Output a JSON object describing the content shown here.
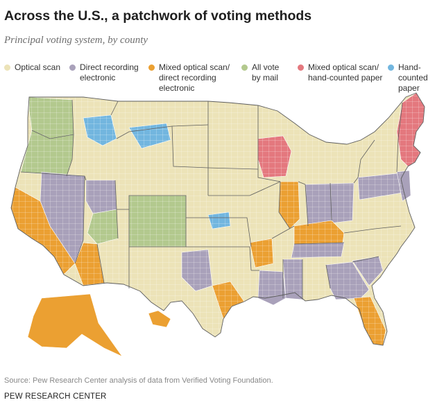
{
  "title": "Across the U.S., a patchwork of voting methods",
  "subtitle": "Principal voting system, by county",
  "legend": [
    {
      "label": "Optical scan",
      "color": "#ece3b8"
    },
    {
      "label": "Direct recording\nelectronic",
      "color": "#a9a1ba"
    },
    {
      "label": "Mixed optical scan/\ndirect recording\nelectronic",
      "color": "#eba032"
    },
    {
      "label": "All vote\nby mail",
      "color": "#b3c98e"
    },
    {
      "label": "Mixed optical scan/\nhand-counted paper",
      "color": "#e4787e"
    },
    {
      "label": "Hand-counted\npaper",
      "color": "#72b6df"
    }
  ],
  "map_colors": {
    "boundary": "#ffffff",
    "state_line": "#5d5d5d"
  },
  "source": "Source: Pew Research Center analysis of data from Verified Voting Foundation.",
  "organization": "PEW RESEARCH CENTER"
}
